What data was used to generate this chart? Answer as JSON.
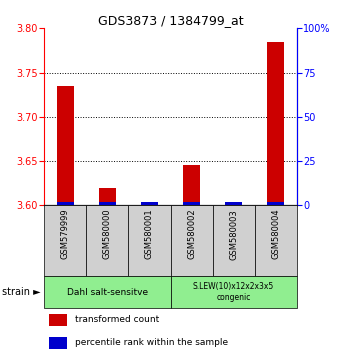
{
  "title": "GDS3873 / 1384799_at",
  "samples": [
    "GSM579999",
    "GSM580000",
    "GSM580001",
    "GSM580002",
    "GSM580003",
    "GSM580004"
  ],
  "red_values": [
    3.735,
    3.62,
    3.6,
    3.645,
    3.6,
    3.785
  ],
  "blue_values": [
    2,
    2,
    2,
    2,
    2,
    2
  ],
  "y_min": 3.6,
  "y_max": 3.8,
  "y_ticks": [
    3.6,
    3.65,
    3.7,
    3.75,
    3.8
  ],
  "y2_ticks": [
    0,
    25,
    50,
    75,
    100
  ],
  "y2_tick_labels": [
    "0",
    "25",
    "50",
    "75",
    "100%"
  ],
  "group1_label": "Dahl salt-sensitve",
  "group1_samples": [
    0,
    1,
    2
  ],
  "group2_label": "S.LEW(10)x12x2x3x5\ncongenic",
  "group2_samples": [
    3,
    4,
    5
  ],
  "group_color": "#90ee90",
  "sample_box_color": "#d0d0d0",
  "red_color": "#cc0000",
  "blue_color": "#0000cc",
  "bar_width": 0.4,
  "legend_red": "transformed count",
  "legend_blue": "percentile rank within the sample",
  "strain_label": "strain"
}
